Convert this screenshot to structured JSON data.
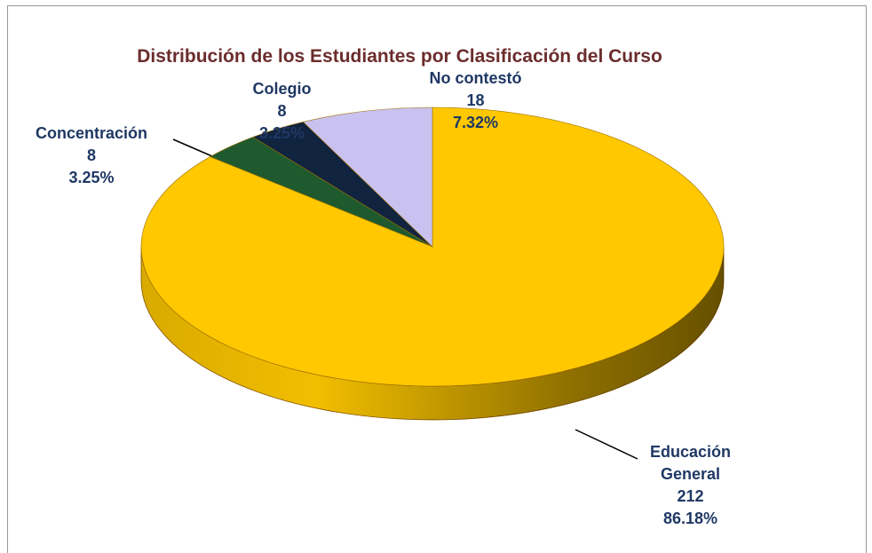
{
  "chart_data": {
    "type": "pie",
    "title": "Distribución de los Estudiantes por Clasificación del Curso",
    "categories": [
      "Educación General",
      "Concentración",
      "Colegio",
      "No contestó"
    ],
    "values": [
      212,
      8,
      8,
      18
    ],
    "value_labels": [
      "86.18%",
      "3.25%",
      "3.25%",
      "7.32%"
    ],
    "colors": [
      "#ffc800",
      "#1f5a2e",
      "#10233f",
      "#c9c1f0"
    ]
  }
}
